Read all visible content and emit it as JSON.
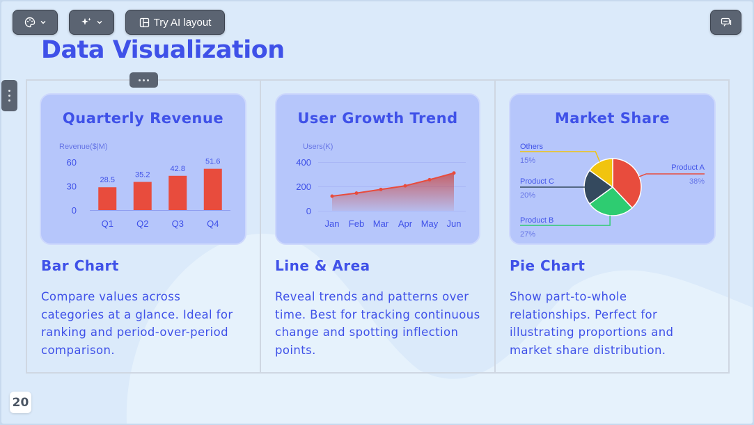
{
  "toolbar": {
    "ai_layout_label": "Try AI layout",
    "theme_icon": "palette-icon",
    "magic_icon": "sparkle-icon",
    "comment_icon": "comment-icon"
  },
  "slide": {
    "title": "Data Visualization",
    "page_number": "20"
  },
  "columns": [
    {
      "card_title": "Quarterly Revenue",
      "heading": "Bar Chart",
      "description": "Compare values across categories at a glance. Ideal for ranking and period-over-period comparison."
    },
    {
      "card_title": "User Growth Trend",
      "heading": "Line & Area",
      "description": "Reveal trends and patterns over time. Best for tracking continuous change and spotting inflection points."
    },
    {
      "card_title": "Market Share",
      "heading": "Pie Chart",
      "description": "Show part-to-whole relationships. Perfect for illustrating proportions and market share distribution."
    }
  ],
  "chart_data": [
    {
      "type": "bar",
      "ylabel": "Revenue($|M)",
      "categories": [
        "Q1",
        "Q2",
        "Q3",
        "Q4"
      ],
      "values": [
        28.5,
        35.2,
        42.8,
        51.6
      ],
      "data_labels": [
        "28.5",
        "35.2",
        "42.8",
        "51.6"
      ],
      "yticks": [
        "0",
        "30",
        "60"
      ],
      "ylim": [
        0,
        60
      ],
      "bar_color": "#e84c3d"
    },
    {
      "type": "line",
      "ylabel": "Users(K)",
      "categories": [
        "Jan",
        "Feb",
        "Mar",
        "Apr",
        "May",
        "Jun"
      ],
      "values": [
        120,
        145,
        175,
        205,
        255,
        310
      ],
      "yticks": [
        "0",
        "200",
        "400"
      ],
      "ylim": [
        0,
        400
      ],
      "area": true,
      "line_color": "#e84c3d"
    },
    {
      "type": "pie",
      "slices": [
        {
          "name": "Product A",
          "pct": "38%",
          "value": 38,
          "color": "#e84c3d"
        },
        {
          "name": "Product B",
          "pct": "27%",
          "value": 27,
          "color": "#2ecc71"
        },
        {
          "name": "Product C",
          "pct": "20%",
          "value": 20,
          "color": "#34495e"
        },
        {
          "name": "Others",
          "pct": "15%",
          "value": 15,
          "color": "#f1c40f"
        }
      ]
    }
  ]
}
